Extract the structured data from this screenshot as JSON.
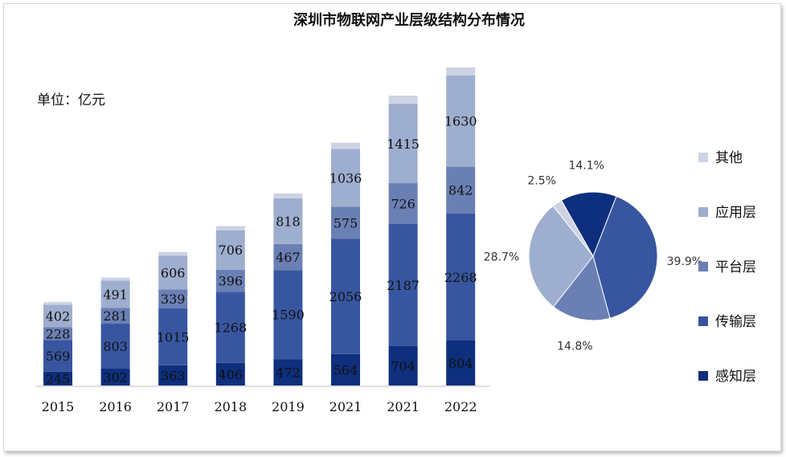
{
  "chart_data": {
    "type": "bar",
    "stacked": true,
    "title": "深圳市物联网产业层级结构分布情况",
    "unit_label": "单位：亿元",
    "categories": [
      "2015",
      "2016",
      "2017",
      "2018",
      "2019",
      "2021",
      "2021",
      "2022"
    ],
    "ylim": [
      0,
      5800
    ],
    "grid": false,
    "legend_position": "right",
    "series": [
      {
        "name": "感知层",
        "color": "#0e2f7d",
        "values": [
          245,
          302,
          363,
          406,
          472,
          564,
          704,
          804
        ]
      },
      {
        "name": "传输层",
        "color": "#3856a0",
        "values": [
          569,
          803,
          1015,
          1268,
          1590,
          2056,
          2187,
          2268
        ]
      },
      {
        "name": "平台层",
        "color": "#6a80b4",
        "values": [
          228,
          281,
          339,
          396,
          467,
          575,
          726,
          842
        ]
      },
      {
        "name": "应用层",
        "color": "#9eaecf",
        "values": [
          402,
          491,
          606,
          706,
          818,
          1036,
          1415,
          1630
        ]
      },
      {
        "name": "其他",
        "color": "#cdd3e5",
        "values": [
          46,
          53,
          64,
          74,
          86,
          109,
          149,
          143
        ],
        "labeled": false
      }
    ],
    "pie": {
      "type": "pie",
      "slices": [
        {
          "series": "传输层",
          "value": 39.9,
          "label": "39.9%",
          "color": "#3856a0"
        },
        {
          "series": "平台层",
          "value": 14.8,
          "label": "14.8%",
          "color": "#6a80b4"
        },
        {
          "series": "应用层",
          "value": 28.7,
          "label": "28.7%",
          "color": "#9eaecf"
        },
        {
          "series": "其他",
          "value": 2.5,
          "label": "2.5%",
          "color": "#cdd3e5"
        },
        {
          "series": "感知层",
          "value": 14.1,
          "label": "14.1%",
          "color": "#0e2f7d"
        }
      ]
    },
    "legend": [
      "其他",
      "应用层",
      "平台层",
      "传输层",
      "感知层"
    ]
  }
}
